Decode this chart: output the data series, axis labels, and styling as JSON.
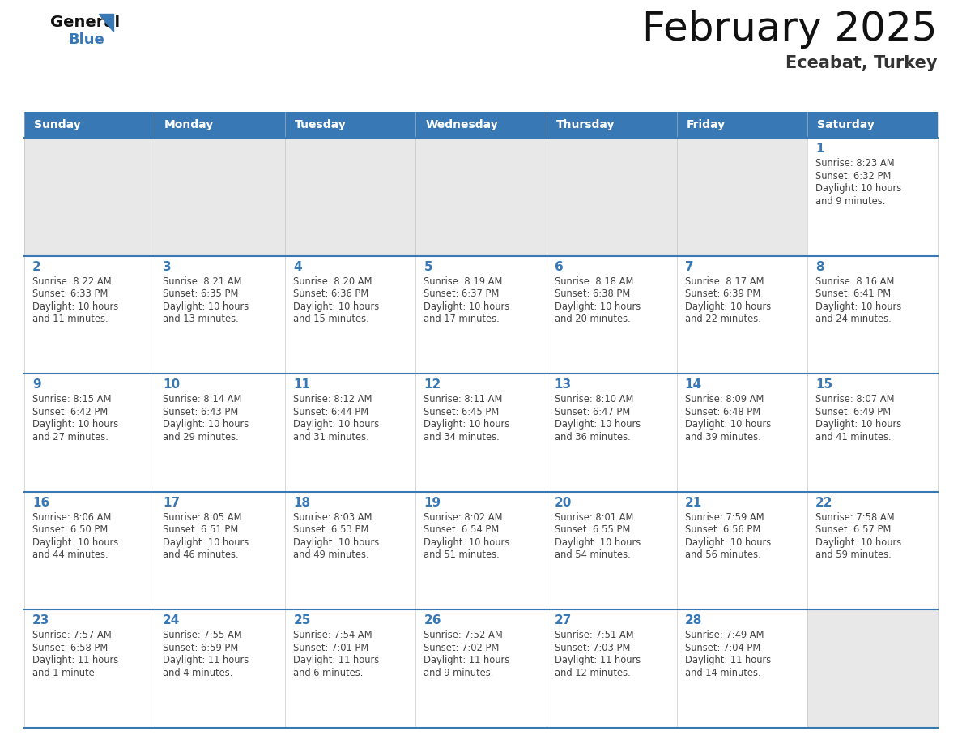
{
  "title": "February 2025",
  "subtitle": "Eceabat, Turkey",
  "header_color": "#3878B4",
  "header_text_color": "#FFFFFF",
  "days_of_week": [
    "Sunday",
    "Monday",
    "Tuesday",
    "Wednesday",
    "Thursday",
    "Friday",
    "Saturday"
  ],
  "bg_color": "#FFFFFF",
  "cell_bg_filled": "#FFFFFF",
  "cell_bg_empty": "#E8E8E8",
  "separator_color": "#3878B4",
  "day_num_color": "#3878B4",
  "text_color": "#444444",
  "logo_general_color": "#111111",
  "logo_blue_color": "#3878B4",
  "logo_triangle_color": "#3878B4",
  "calendar_data": [
    [
      null,
      null,
      null,
      null,
      null,
      null,
      {
        "day": 1,
        "sunrise": "8:23 AM",
        "sunset": "6:32 PM",
        "daylight": "10 hours",
        "daylight2": "and 9 minutes."
      }
    ],
    [
      {
        "day": 2,
        "sunrise": "8:22 AM",
        "sunset": "6:33 PM",
        "daylight": "10 hours",
        "daylight2": "and 11 minutes."
      },
      {
        "day": 3,
        "sunrise": "8:21 AM",
        "sunset": "6:35 PM",
        "daylight": "10 hours",
        "daylight2": "and 13 minutes."
      },
      {
        "day": 4,
        "sunrise": "8:20 AM",
        "sunset": "6:36 PM",
        "daylight": "10 hours",
        "daylight2": "and 15 minutes."
      },
      {
        "day": 5,
        "sunrise": "8:19 AM",
        "sunset": "6:37 PM",
        "daylight": "10 hours",
        "daylight2": "and 17 minutes."
      },
      {
        "day": 6,
        "sunrise": "8:18 AM",
        "sunset": "6:38 PM",
        "daylight": "10 hours",
        "daylight2": "and 20 minutes."
      },
      {
        "day": 7,
        "sunrise": "8:17 AM",
        "sunset": "6:39 PM",
        "daylight": "10 hours",
        "daylight2": "and 22 minutes."
      },
      {
        "day": 8,
        "sunrise": "8:16 AM",
        "sunset": "6:41 PM",
        "daylight": "10 hours",
        "daylight2": "and 24 minutes."
      }
    ],
    [
      {
        "day": 9,
        "sunrise": "8:15 AM",
        "sunset": "6:42 PM",
        "daylight": "10 hours",
        "daylight2": "and 27 minutes."
      },
      {
        "day": 10,
        "sunrise": "8:14 AM",
        "sunset": "6:43 PM",
        "daylight": "10 hours",
        "daylight2": "and 29 minutes."
      },
      {
        "day": 11,
        "sunrise": "8:12 AM",
        "sunset": "6:44 PM",
        "daylight": "10 hours",
        "daylight2": "and 31 minutes."
      },
      {
        "day": 12,
        "sunrise": "8:11 AM",
        "sunset": "6:45 PM",
        "daylight": "10 hours",
        "daylight2": "and 34 minutes."
      },
      {
        "day": 13,
        "sunrise": "8:10 AM",
        "sunset": "6:47 PM",
        "daylight": "10 hours",
        "daylight2": "and 36 minutes."
      },
      {
        "day": 14,
        "sunrise": "8:09 AM",
        "sunset": "6:48 PM",
        "daylight": "10 hours",
        "daylight2": "and 39 minutes."
      },
      {
        "day": 15,
        "sunrise": "8:07 AM",
        "sunset": "6:49 PM",
        "daylight": "10 hours",
        "daylight2": "and 41 minutes."
      }
    ],
    [
      {
        "day": 16,
        "sunrise": "8:06 AM",
        "sunset": "6:50 PM",
        "daylight": "10 hours",
        "daylight2": "and 44 minutes."
      },
      {
        "day": 17,
        "sunrise": "8:05 AM",
        "sunset": "6:51 PM",
        "daylight": "10 hours",
        "daylight2": "and 46 minutes."
      },
      {
        "day": 18,
        "sunrise": "8:03 AM",
        "sunset": "6:53 PM",
        "daylight": "10 hours",
        "daylight2": "and 49 minutes."
      },
      {
        "day": 19,
        "sunrise": "8:02 AM",
        "sunset": "6:54 PM",
        "daylight": "10 hours",
        "daylight2": "and 51 minutes."
      },
      {
        "day": 20,
        "sunrise": "8:01 AM",
        "sunset": "6:55 PM",
        "daylight": "10 hours",
        "daylight2": "and 54 minutes."
      },
      {
        "day": 21,
        "sunrise": "7:59 AM",
        "sunset": "6:56 PM",
        "daylight": "10 hours",
        "daylight2": "and 56 minutes."
      },
      {
        "day": 22,
        "sunrise": "7:58 AM",
        "sunset": "6:57 PM",
        "daylight": "10 hours",
        "daylight2": "and 59 minutes."
      }
    ],
    [
      {
        "day": 23,
        "sunrise": "7:57 AM",
        "sunset": "6:58 PM",
        "daylight": "11 hours",
        "daylight2": "and 1 minute."
      },
      {
        "day": 24,
        "sunrise": "7:55 AM",
        "sunset": "6:59 PM",
        "daylight": "11 hours",
        "daylight2": "and 4 minutes."
      },
      {
        "day": 25,
        "sunrise": "7:54 AM",
        "sunset": "7:01 PM",
        "daylight": "11 hours",
        "daylight2": "and 6 minutes."
      },
      {
        "day": 26,
        "sunrise": "7:52 AM",
        "sunset": "7:02 PM",
        "daylight": "11 hours",
        "daylight2": "and 9 minutes."
      },
      {
        "day": 27,
        "sunrise": "7:51 AM",
        "sunset": "7:03 PM",
        "daylight": "11 hours",
        "daylight2": "and 12 minutes."
      },
      {
        "day": 28,
        "sunrise": "7:49 AM",
        "sunset": "7:04 PM",
        "daylight": "11 hours",
        "daylight2": "and 14 minutes."
      },
      null
    ]
  ]
}
